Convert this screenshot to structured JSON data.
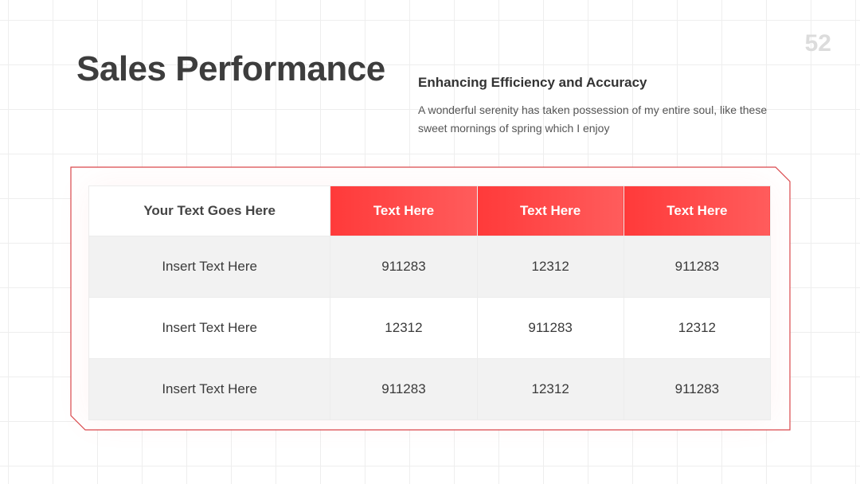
{
  "page_number": "52",
  "header": {
    "title": "Sales Performance",
    "subtitle": "Enhancing Efficiency and Accuracy",
    "description": "A wonderful serenity has taken possession of my entire soul, like these sweet mornings of spring which I enjoy"
  },
  "table": {
    "columns": [
      "Your Text Goes Here",
      "Text Here",
      "Text Here",
      "Text Here"
    ],
    "rows": [
      [
        "Insert Text Here",
        911283,
        12312,
        911283
      ],
      [
        "Insert Text Here",
        12312,
        911283,
        12312
      ],
      [
        "Insert Text Here",
        911283,
        12312,
        911283
      ]
    ]
  }
}
